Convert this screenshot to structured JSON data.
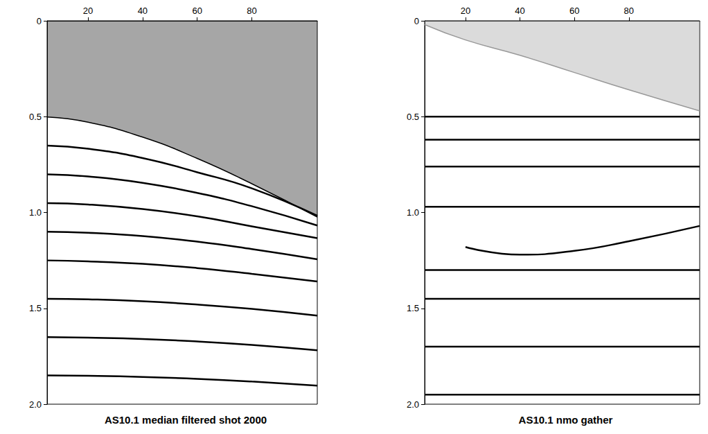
{
  "chart_data": [
    {
      "type": "line",
      "title": "AS10.1 median filtered shot 2000",
      "x": [
        5,
        20,
        40,
        60,
        80,
        104
      ],
      "xlim": [
        5,
        104
      ],
      "xticks": [
        20,
        40,
        60,
        80
      ],
      "ylim": [
        0,
        2
      ],
      "yticks": [
        0,
        0.5,
        {
          "value": 1,
          "label": "1.0"
        },
        1.5,
        {
          "value": 2,
          "label": "2.0"
        }
      ],
      "grid": false,
      "series": [
        {
          "type": "area",
          "color": "#000000",
          "values": [
            0.502,
            0.529,
            0.607,
            0.718,
            0.85,
            1.024
          ]
        },
        {
          "color": "#000000",
          "values": [
            0.651,
            0.667,
            0.716,
            0.79,
            0.874,
            1.017
          ]
        },
        {
          "color": "#000000",
          "values": [
            0.801,
            0.812,
            0.845,
            0.898,
            0.967,
            1.068
          ]
        },
        {
          "color": "#000000",
          "values": [
            0.951,
            0.958,
            0.982,
            1.02,
            1.072,
            1.134
          ]
        },
        {
          "color": "#000000",
          "values": [
            1.1,
            1.106,
            1.123,
            1.152,
            1.191,
            1.244
          ]
        },
        {
          "color": "#000000",
          "values": [
            1.25,
            1.255,
            1.268,
            1.29,
            1.32,
            1.36
          ]
        },
        {
          "color": "#000000",
          "values": [
            1.45,
            1.453,
            1.463,
            1.48,
            1.503,
            1.538
          ]
        },
        {
          "color": "#000000",
          "values": [
            1.65,
            1.653,
            1.66,
            1.673,
            1.691,
            1.719
          ]
        },
        {
          "color": "#000000",
          "values": [
            1.85,
            1.852,
            1.858,
            1.868,
            1.882,
            1.903
          ]
        }
      ]
    },
    {
      "type": "line",
      "title": "AS10.1 nmo gather",
      "x": [
        5,
        20,
        40,
        60,
        80,
        106
      ],
      "xlim": [
        5,
        106
      ],
      "xticks": [
        20,
        40,
        60,
        80
      ],
      "ylim": [
        0,
        2
      ],
      "yticks": [
        0,
        0.5,
        {
          "value": 1,
          "label": "1.0"
        },
        1.5,
        {
          "value": 2,
          "label": "2.0"
        }
      ],
      "grid": false,
      "series": [
        {
          "type": "area",
          "color": "#999999",
          "values": [
            0.02,
            0.1,
            0.18,
            0.27,
            0.36,
            0.47
          ]
        },
        {
          "color": "#000000",
          "values": [
            0.5,
            0.5,
            0.5,
            0.5,
            0.5,
            0.5
          ]
        },
        {
          "color": "#000000",
          "values": [
            0.62,
            0.62,
            0.62,
            0.62,
            0.62,
            0.62
          ]
        },
        {
          "color": "#000000",
          "values": [
            0.76,
            0.76,
            0.76,
            0.76,
            0.76,
            0.76
          ]
        },
        {
          "color": "#000000",
          "values": [
            0.97,
            0.97,
            0.97,
            0.97,
            0.97,
            0.97
          ]
        },
        {
          "color": "#000000",
          "values": [
            null,
            1.18,
            1.22,
            1.2,
            1.15,
            1.07
          ]
        },
        {
          "color": "#000000",
          "values": [
            1.3,
            1.3,
            1.3,
            1.3,
            1.3,
            1.3
          ]
        },
        {
          "color": "#000000",
          "values": [
            1.45,
            1.45,
            1.45,
            1.45,
            1.45,
            1.45
          ]
        },
        {
          "color": "#000000",
          "values": [
            1.7,
            1.7,
            1.7,
            1.7,
            1.7,
            1.7
          ]
        },
        {
          "color": "#000000",
          "values": [
            1.95,
            1.95,
            1.95,
            1.95,
            1.95,
            1.95
          ]
        }
      ]
    }
  ]
}
